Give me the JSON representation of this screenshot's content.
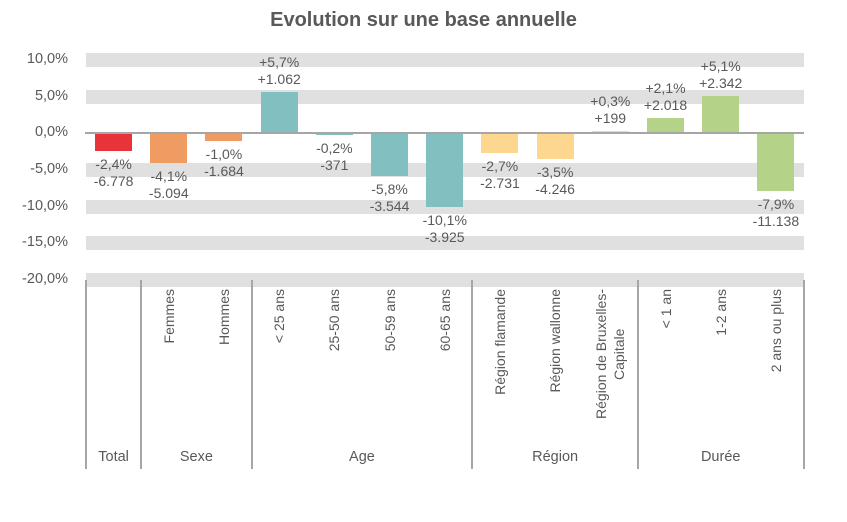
{
  "title": "Evolution sur une base annuelle",
  "colors": {
    "text": "#595959",
    "grid_band": "#e0e0e0",
    "zero_line": "#a6a6a6",
    "separator": "#a6a6a6",
    "total": "#e8333a",
    "sexe": "#ef9b62",
    "age": "#82bfc0",
    "region": "#fdd78f",
    "duree": "#b4d389"
  },
  "chart_data": {
    "type": "bar",
    "title": "Evolution sur une base annuelle",
    "xlabel": "",
    "ylabel": "",
    "unit": "percent",
    "ylim": [
      -20,
      10
    ],
    "grid": "horizontal-bands",
    "legend": "none",
    "y_ticks": [
      {
        "label": "10,0%",
        "value": 10
      },
      {
        "label": "5,0%",
        "value": 5
      },
      {
        "label": "0,0%",
        "value": 0
      },
      {
        "label": "-5,0%",
        "value": -5
      },
      {
        "label": "-10,0%",
        "value": -10
      },
      {
        "label": "-15,0%",
        "value": -15
      },
      {
        "label": "-20,0%",
        "value": -20
      }
    ],
    "groups": [
      {
        "label": "Total",
        "count": 1
      },
      {
        "label": "Sexe",
        "count": 2
      },
      {
        "label": "Age",
        "count": 4
      },
      {
        "label": "Région",
        "count": 3
      },
      {
        "label": "Durée",
        "count": 3
      }
    ],
    "bars": [
      {
        "group": "Total",
        "category": "",
        "value_pct": -2.4,
        "pct_label": "-2,4%",
        "count_label": "-6.778",
        "color": "#e8333a"
      },
      {
        "group": "Sexe",
        "category": "Femmes",
        "value_pct": -4.1,
        "pct_label": "-4,1%",
        "count_label": "-5.094",
        "color": "#ef9b62"
      },
      {
        "group": "Sexe",
        "category": "Hommes",
        "value_pct": -1.0,
        "pct_label": "-1,0%",
        "count_label": "-1.684",
        "color": "#ef9b62"
      },
      {
        "group": "Age",
        "category": "< 25 ans",
        "value_pct": 5.7,
        "pct_label": "+5,7%",
        "count_label": "+1.062",
        "color": "#82bfc0"
      },
      {
        "group": "Age",
        "category": "25-50 ans",
        "value_pct": -0.2,
        "pct_label": "-0,2%",
        "count_label": "-371",
        "color": "#82bfc0"
      },
      {
        "group": "Age",
        "category": "50-59 ans",
        "value_pct": -5.8,
        "pct_label": "-5,8%",
        "count_label": "-3.544",
        "color": "#82bfc0"
      },
      {
        "group": "Age",
        "category": "60-65 ans",
        "value_pct": -10.1,
        "pct_label": "-10,1%",
        "count_label": "-3.925",
        "color": "#82bfc0"
      },
      {
        "group": "Région",
        "category": "Région flamande",
        "value_pct": -2.7,
        "pct_label": "-2,7%",
        "count_label": "-2.731",
        "color": "#fdd78f"
      },
      {
        "group": "Région",
        "category": "Région wallonne",
        "value_pct": -3.5,
        "pct_label": "-3,5%",
        "count_label": "-4.246",
        "color": "#fdd78f"
      },
      {
        "group": "Région",
        "category": "Région de Bruxelles-\nCapitale",
        "value_pct": 0.3,
        "pct_label": "+0,3%",
        "count_label": "+199",
        "color": "#fdd78f"
      },
      {
        "group": "Durée",
        "category": "< 1 an",
        "value_pct": 2.1,
        "pct_label": "+2,1%",
        "count_label": "+2.018",
        "color": "#b4d389"
      },
      {
        "group": "Durée",
        "category": "1-2 ans",
        "value_pct": 5.1,
        "pct_label": "+5,1%",
        "count_label": "+2.342",
        "color": "#b4d389"
      },
      {
        "group": "Durée",
        "category": "2 ans ou plus",
        "value_pct": -7.9,
        "pct_label": "-7,9%",
        "count_label": "-11.138",
        "color": "#b4d389"
      }
    ]
  }
}
